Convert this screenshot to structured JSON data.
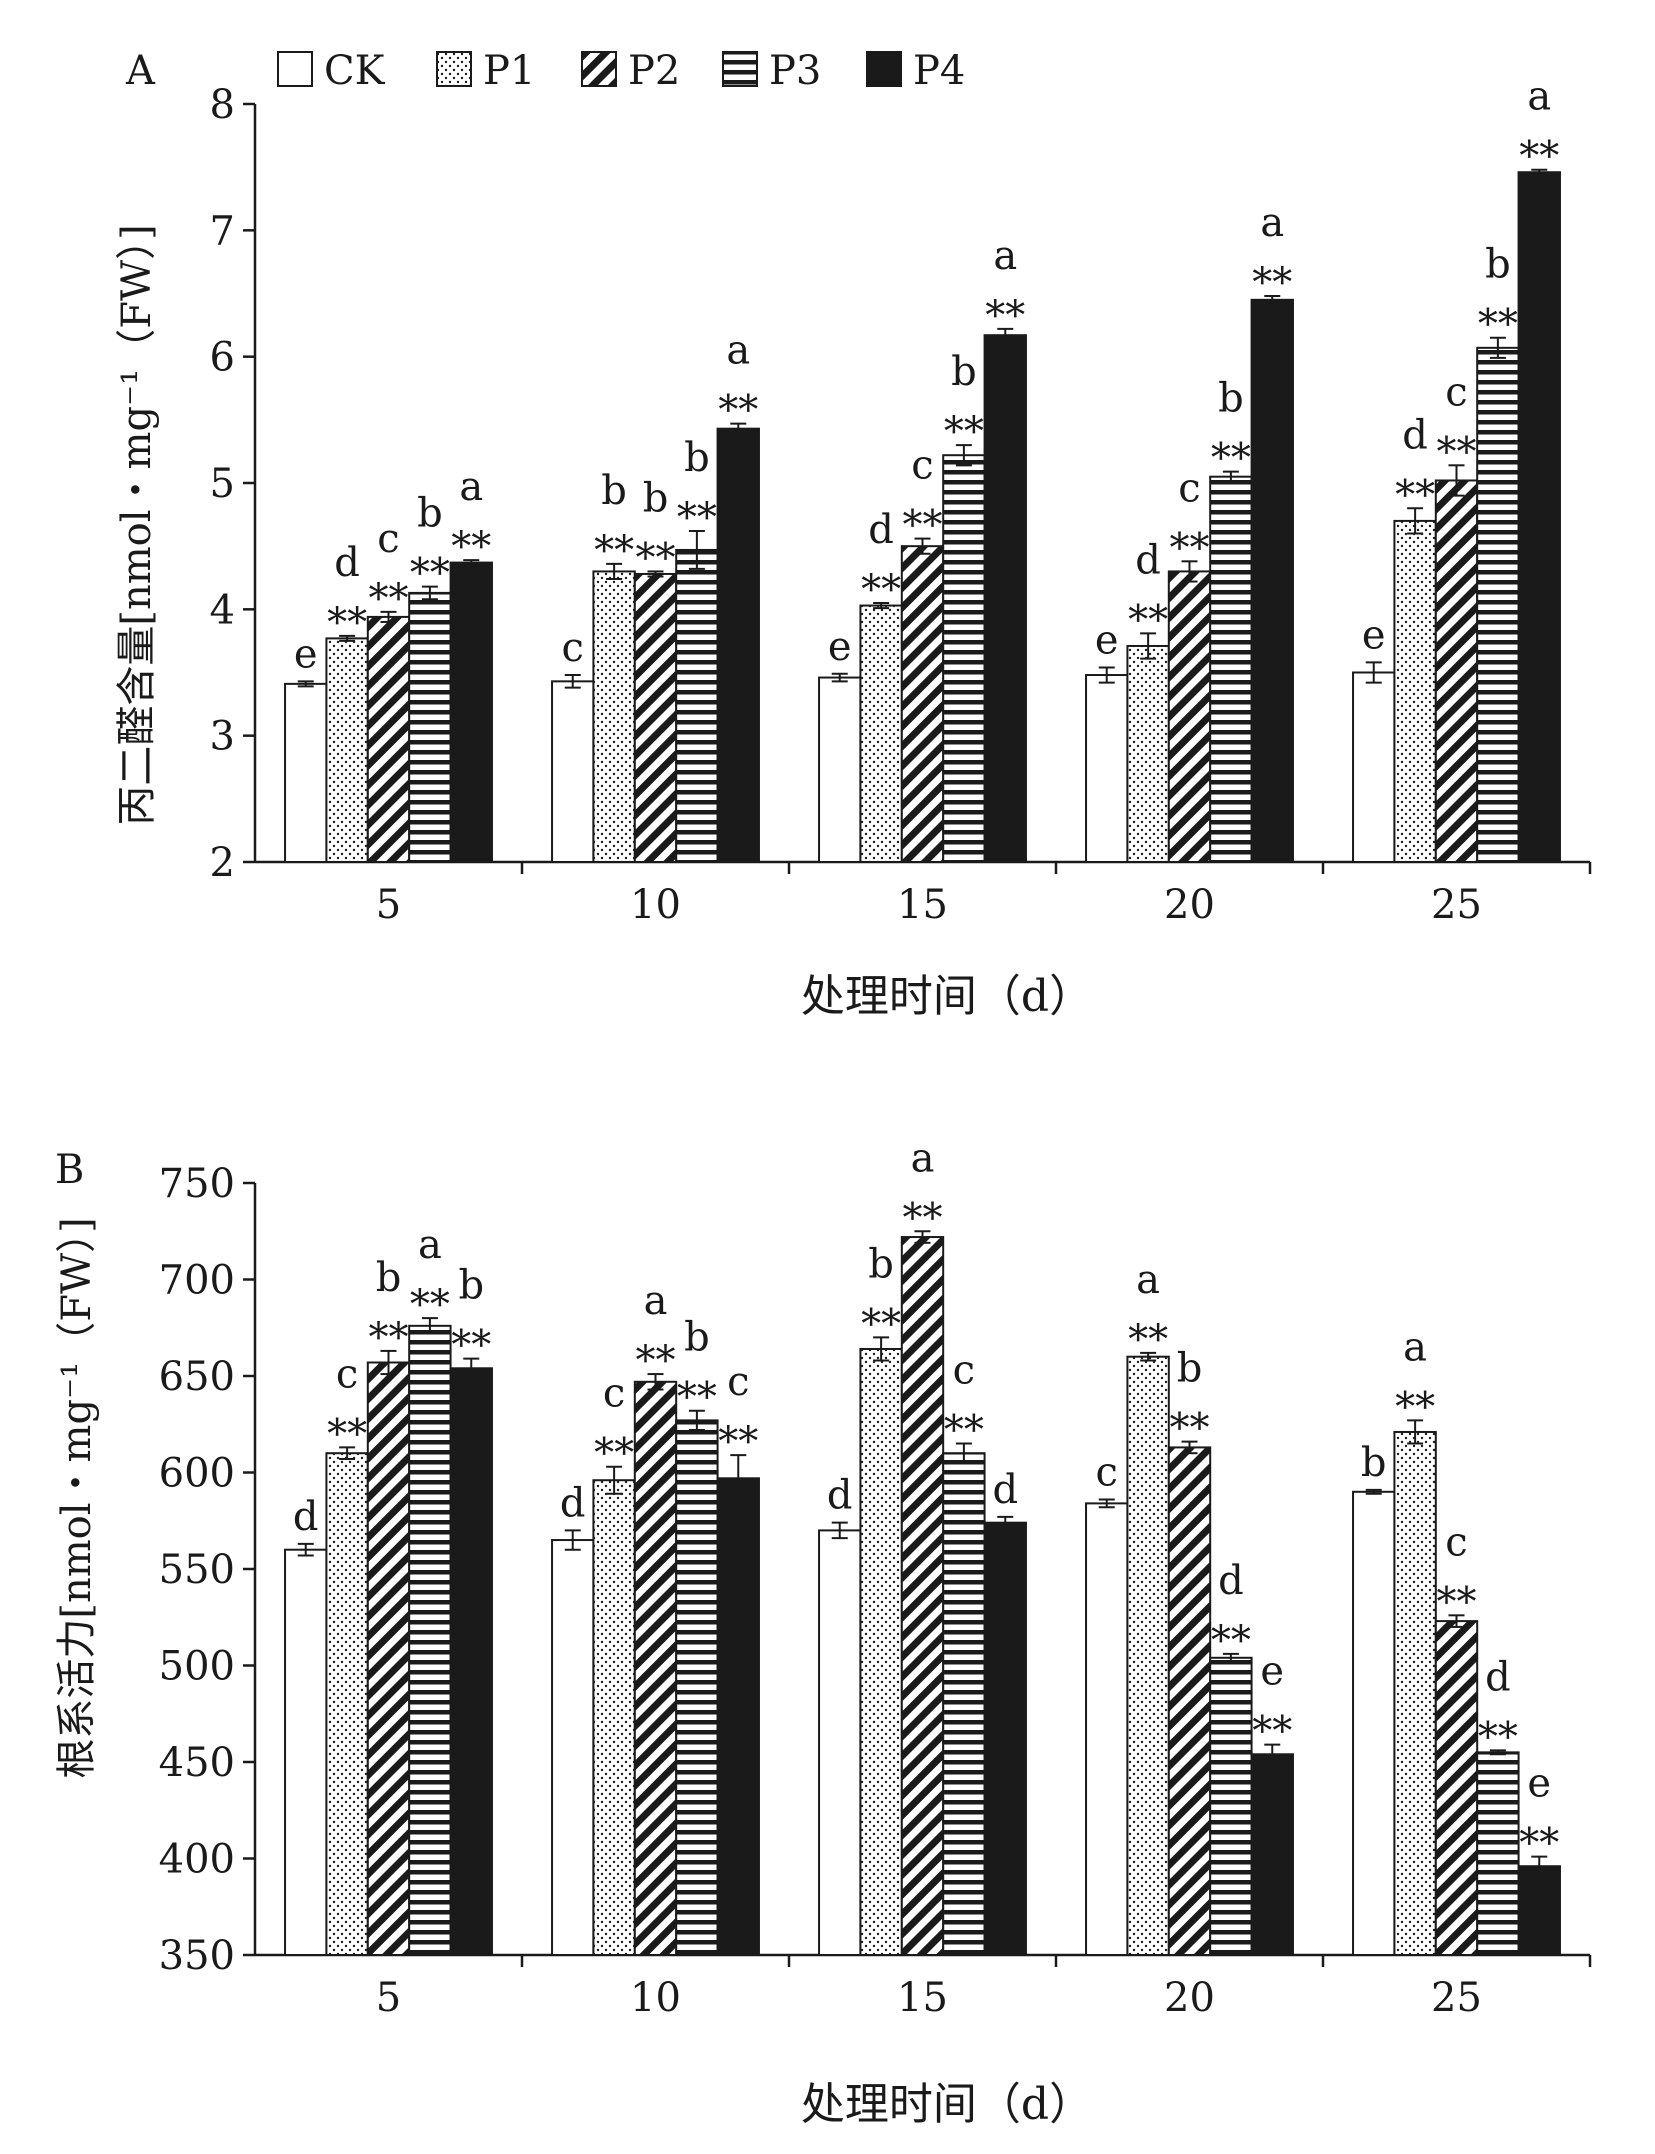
{
  "chart_data": [
    {
      "type": "bar",
      "panel_label": "A",
      "ylabel": "丙二醛含量[nmol・mg⁻¹（FW）]",
      "xlabel": "处理时间（d）",
      "ylim": [
        2,
        8
      ],
      "yticks": [
        "2",
        "3",
        "4",
        "5",
        "6",
        "7",
        "8"
      ],
      "categories": [
        "5",
        "10",
        "15",
        "20",
        "25"
      ],
      "legend": [
        "CK",
        "P1",
        "P2",
        "P3",
        "P4"
      ],
      "series": [
        {
          "name": "CK",
          "values": [
            3.41,
            3.43,
            3.46,
            3.48,
            3.5
          ],
          "errors": [
            0.02,
            0.05,
            0.03,
            0.06,
            0.08
          ],
          "letters": [
            "e",
            "c",
            "e",
            "e",
            "e"
          ],
          "stars": [
            "",
            "",
            "",
            "",
            ""
          ]
        },
        {
          "name": "P1",
          "values": [
            3.77,
            4.3,
            4.03,
            3.71,
            4.7
          ],
          "errors": [
            0.02,
            0.06,
            0.02,
            0.1,
            0.1
          ],
          "letters": [
            "d",
            "b",
            "d",
            "d",
            "d"
          ],
          "stars": [
            "**",
            "**",
            "**",
            "**",
            "**"
          ]
        },
        {
          "name": "P2",
          "values": [
            3.94,
            4.28,
            4.5,
            4.3,
            5.02
          ],
          "errors": [
            0.04,
            0.02,
            0.06,
            0.08,
            0.12
          ],
          "letters": [
            "c",
            "b",
            "c",
            "c",
            "c"
          ],
          "stars": [
            "**",
            "**",
            "**",
            "**",
            "**"
          ]
        },
        {
          "name": "P3",
          "values": [
            4.13,
            4.47,
            5.22,
            5.05,
            6.07
          ],
          "errors": [
            0.05,
            0.15,
            0.08,
            0.04,
            0.08
          ],
          "letters": [
            "b",
            "b",
            "b",
            "b",
            "b"
          ],
          "stars": [
            "**",
            "**",
            "**",
            "**",
            "**"
          ]
        },
        {
          "name": "P4",
          "values": [
            4.37,
            5.43,
            6.17,
            6.45,
            7.46
          ],
          "errors": [
            0.02,
            0.04,
            0.05,
            0.03,
            0.02
          ],
          "letters": [
            "a",
            "a",
            "a",
            "a",
            "a"
          ],
          "stars": [
            "**",
            "**",
            "**",
            "**",
            "**"
          ]
        }
      ]
    },
    {
      "type": "bar",
      "panel_label": "B",
      "ylabel": "根系活力[nmol・mg⁻¹（FW）]",
      "xlabel": "处理时间（d）",
      "ylim": [
        350,
        750
      ],
      "yticks": [
        "350",
        "400",
        "450",
        "500",
        "550",
        "600",
        "650",
        "700",
        "750"
      ],
      "categories": [
        "5",
        "10",
        "15",
        "20",
        "25"
      ],
      "series": [
        {
          "name": "CK",
          "values": [
            560,
            565,
            570,
            584,
            590
          ],
          "errors": [
            3,
            5,
            4,
            2,
            1
          ],
          "letters": [
            "d",
            "d",
            "d",
            "c",
            "b"
          ],
          "stars": [
            "",
            "",
            "",
            "",
            ""
          ]
        },
        {
          "name": "P1",
          "values": [
            610,
            596,
            664,
            660,
            621
          ],
          "errors": [
            3,
            7,
            6,
            2,
            6
          ],
          "letters": [
            "c",
            "c",
            "b",
            "a",
            "a"
          ],
          "stars": [
            "**",
            "**",
            "**",
            "**",
            "**"
          ]
        },
        {
          "name": "P2",
          "values": [
            657,
            647,
            722,
            613,
            523
          ],
          "errors": [
            6,
            4,
            3,
            3,
            3
          ],
          "letters": [
            "b",
            "a",
            "a",
            "b",
            "c"
          ],
          "stars": [
            "**",
            "**",
            "**",
            "**",
            "**"
          ]
        },
        {
          "name": "P3",
          "values": [
            676,
            627,
            610,
            504,
            455
          ],
          "errors": [
            4,
            5,
            5,
            2,
            1
          ],
          "letters": [
            "a",
            "b",
            "c",
            "d",
            "d"
          ],
          "stars": [
            "**",
            "**",
            "**",
            "**",
            "**"
          ]
        },
        {
          "name": "P4",
          "values": [
            654,
            597,
            574,
            454,
            396
          ],
          "errors": [
            5,
            12,
            3,
            5,
            5
          ],
          "letters": [
            "b",
            "c",
            "d",
            "e",
            "e"
          ],
          "stars": [
            "**",
            "**",
            "",
            "**",
            "**"
          ]
        }
      ]
    }
  ]
}
